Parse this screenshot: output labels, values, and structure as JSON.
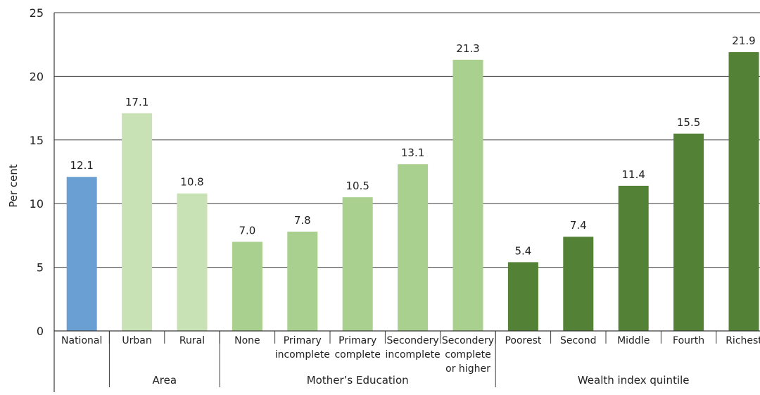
{
  "chart_data": {
    "type": "bar",
    "ylabel": "Per cent",
    "ylim": [
      0,
      25
    ],
    "yticks": [
      0,
      5,
      10,
      15,
      20,
      25
    ],
    "grid": true,
    "categories": [
      {
        "label": [
          "National"
        ],
        "value": 12.1,
        "value_label": "12.1",
        "color": "#6a9fd4",
        "group": ""
      },
      {
        "label": [
          "Urban"
        ],
        "value": 17.1,
        "value_label": "17.1",
        "color": "#c8e1b5",
        "group": "Area"
      },
      {
        "label": [
          "Rural"
        ],
        "value": 10.8,
        "value_label": "10.8",
        "color": "#c8e1b5",
        "group": "Area"
      },
      {
        "label": [
          "None"
        ],
        "value": 7.0,
        "value_label": "7.0",
        "color": "#a9d08e",
        "group": "Mother’s Education"
      },
      {
        "label": [
          "Primary",
          "incomplete"
        ],
        "value": 7.8,
        "value_label": "7.8",
        "color": "#a9d08e",
        "group": "Mother’s Education"
      },
      {
        "label": [
          "Primary",
          "complete"
        ],
        "value": 10.5,
        "value_label": "10.5",
        "color": "#a9d08e",
        "group": "Mother’s Education"
      },
      {
        "label": [
          "Secondery",
          "incomplete"
        ],
        "value": 13.1,
        "value_label": "13.1",
        "color": "#a9d08e",
        "group": "Mother’s Education"
      },
      {
        "label": [
          "Secondery",
          "complete",
          "or higher"
        ],
        "value": 21.3,
        "value_label": "21.3",
        "color": "#a9d08e",
        "group": "Mother’s Education"
      },
      {
        "label": [
          "Poorest"
        ],
        "value": 5.4,
        "value_label": "5.4",
        "color": "#538135",
        "group": "Wealth index quintile"
      },
      {
        "label": [
          "Second"
        ],
        "value": 7.4,
        "value_label": "7.4",
        "color": "#538135",
        "group": "Wealth index quintile"
      },
      {
        "label": [
          "Middle"
        ],
        "value": 11.4,
        "value_label": "11.4",
        "color": "#538135",
        "group": "Wealth index quintile"
      },
      {
        "label": [
          "Fourth"
        ],
        "value": 15.5,
        "value_label": "15.5",
        "color": "#538135",
        "group": "Wealth index quintile"
      },
      {
        "label": [
          "Richest"
        ],
        "value": 21.9,
        "value_label": "21.9",
        "color": "#538135",
        "group": "Wealth index quintile"
      }
    ],
    "groups": [
      "Area",
      "Mother’s Education",
      "Wealth index quintile"
    ]
  }
}
